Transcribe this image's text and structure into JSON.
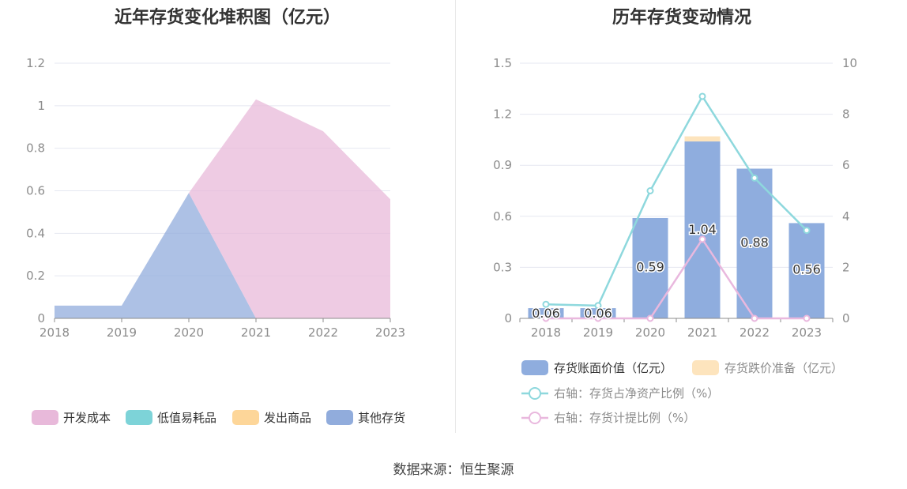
{
  "source_label": "数据来源：恒生聚源",
  "chart_data": [
    {
      "type": "area",
      "stacked": true,
      "title": "近年存货变化堆积图（亿元）",
      "categories": [
        "2018",
        "2019",
        "2020",
        "2021",
        "2022",
        "2023"
      ],
      "ylim": [
        0,
        1.2
      ],
      "yticks": [
        "0",
        "0.2",
        "0.4",
        "0.6",
        "0.8",
        "1",
        "1.2"
      ],
      "grid": true,
      "legend_position": "bottom",
      "series": [
        {
          "name": "开发成本",
          "color": "#e8b9da",
          "values": [
            0,
            0,
            0,
            1.03,
            0.88,
            0.56
          ]
        },
        {
          "name": "低值易耗品",
          "color": "#7dd3d8",
          "values": [
            0,
            0,
            0,
            0,
            0,
            0
          ]
        },
        {
          "name": "发出商品",
          "color": "#fdd699",
          "values": [
            0,
            0,
            0,
            0,
            0,
            0
          ]
        },
        {
          "name": "其他存货",
          "color": "#91acdc",
          "values": [
            0.06,
            0.06,
            0.59,
            0,
            0,
            0
          ]
        }
      ]
    },
    {
      "type": "bar",
      "title": "历年存货变动情况",
      "categories": [
        "2018",
        "2019",
        "2020",
        "2021",
        "2022",
        "2023"
      ],
      "ylim": [
        0,
        1.5
      ],
      "yticks": [
        "0",
        "0.3",
        "0.6",
        "0.9",
        "1.2",
        "1.5"
      ],
      "y2lim": [
        0,
        10
      ],
      "y2ticks": [
        "0",
        "2",
        "4",
        "6",
        "8",
        "10"
      ],
      "grid": true,
      "legend_position": "bottom",
      "series": [
        {
          "name": "存货账面价值（亿元）",
          "kind": "bar",
          "axis": "left",
          "color": "#8fadde",
          "values": [
            0.06,
            0.06,
            0.59,
            1.04,
            0.88,
            0.56
          ],
          "labels": [
            "0.06",
            "0.06",
            "0.59",
            "1.04",
            "0.88",
            "0.56"
          ]
        },
        {
          "name": "存货跌价准备（亿元）",
          "kind": "bar",
          "axis": "left",
          "color": "#fde4bd",
          "values": [
            0,
            0,
            0,
            0.03,
            0,
            0
          ]
        },
        {
          "name": "右轴：存货占净资产比例（%）",
          "kind": "line",
          "axis": "right",
          "color": "#8ed8dd",
          "values": [
            0.55,
            0.5,
            5.0,
            8.7,
            5.5,
            3.45
          ]
        },
        {
          "name": "右轴：存货计提比例（%）",
          "kind": "line",
          "axis": "right",
          "color": "#e9b8de",
          "values": [
            0,
            0,
            0,
            3.1,
            0,
            0
          ]
        }
      ]
    }
  ]
}
